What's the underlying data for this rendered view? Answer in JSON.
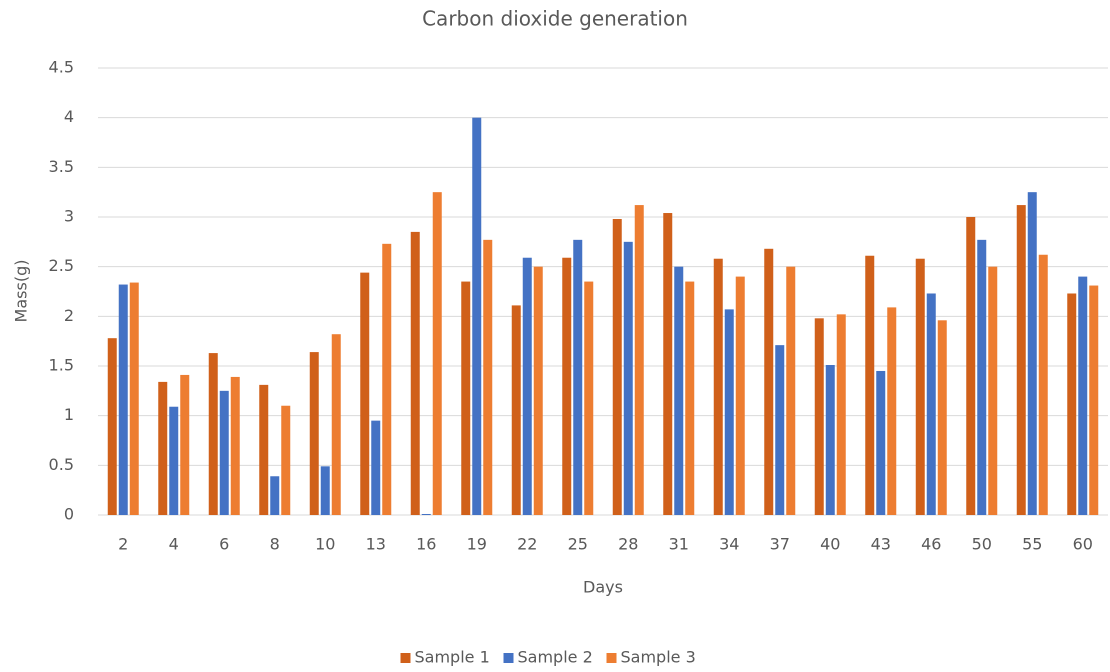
{
  "chart_data": {
    "type": "bar",
    "title": "Carbon dioxide generation",
    "x_label": "Days",
    "y_label": "Mass(g)",
    "categories": [
      "2",
      "4",
      "6",
      "8",
      "10",
      "13",
      "16",
      "19",
      "22",
      "25",
      "28",
      "31",
      "34",
      "37",
      "40",
      "43",
      "46",
      "50",
      "55",
      "60"
    ],
    "series": [
      {
        "name": "Sample 1",
        "color": "#d0601a",
        "values": [
          1.78,
          1.34,
          1.63,
          1.31,
          1.64,
          2.44,
          2.85,
          2.35,
          2.11,
          2.59,
          2.98,
          3.04,
          2.58,
          2.68,
          1.98,
          2.61,
          2.58,
          3.0,
          3.12,
          2.23
        ]
      },
      {
        "name": "Sample 2",
        "color": "#4472c4",
        "values": [
          2.32,
          1.09,
          1.25,
          0.39,
          0.49,
          0.95,
          0.01,
          4.0,
          2.59,
          2.77,
          2.75,
          2.5,
          2.07,
          1.71,
          1.51,
          1.45,
          2.23,
          2.77,
          3.25,
          2.4
        ]
      },
      {
        "name": "Sample 3",
        "color": "#ed7d31",
        "values": [
          2.34,
          1.41,
          1.39,
          1.1,
          1.82,
          2.73,
          3.25,
          2.77,
          2.5,
          2.35,
          3.12,
          2.35,
          2.4,
          2.5,
          2.02,
          2.09,
          1.96,
          2.5,
          2.62,
          2.31
        ]
      }
    ],
    "ylim": [
      0,
      4.5
    ],
    "yticks": [
      0,
      0.5,
      1,
      1.5,
      2,
      2.5,
      3,
      3.5,
      4,
      4.5
    ],
    "grid": true,
    "legend": "bottom"
  }
}
